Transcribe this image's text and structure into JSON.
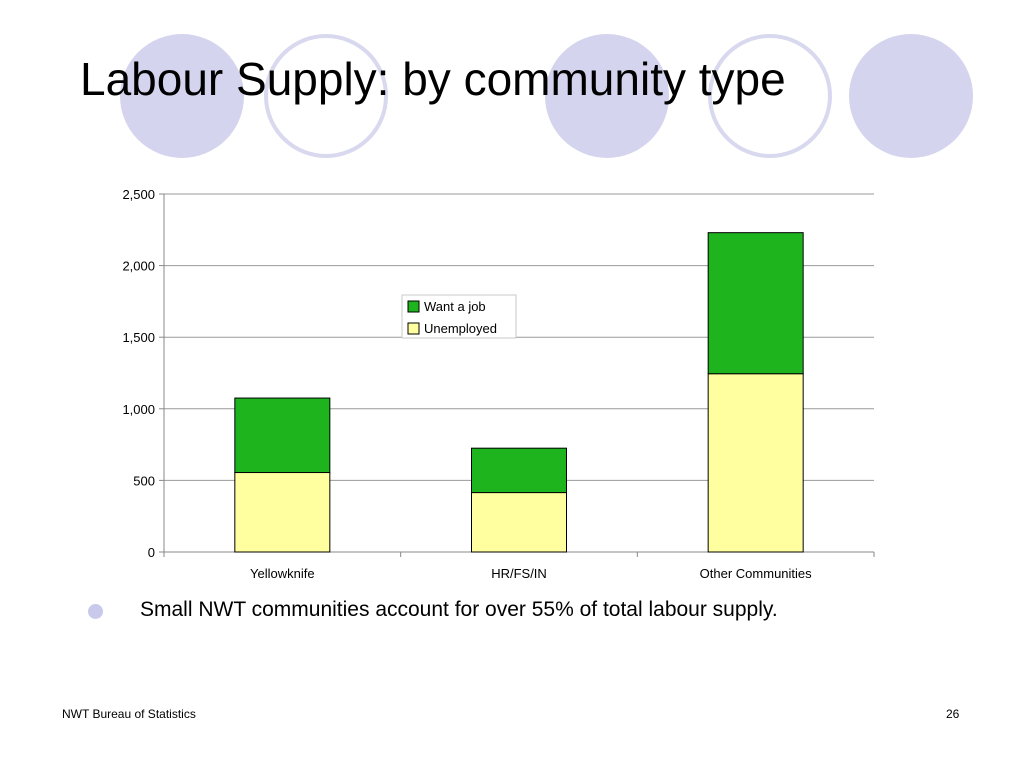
{
  "slide": {
    "title": "Labour Supply: by community type",
    "bullet": "Small NWT communities account for over 55% of total labour supply.",
    "footer_left": "NWT Bureau of Statistics",
    "page_number": "26"
  },
  "colors": {
    "want_a_job": "#1eb41e",
    "unemployed": "#ffff9f",
    "decor_circle": "#d4d4ee",
    "bullet": "#c9c9ec"
  },
  "chart_data": {
    "type": "bar",
    "stacked": true,
    "categories": [
      "Yellowknife",
      "HR/FS/IN",
      "Other Communities"
    ],
    "series": [
      {
        "name": "Unemployed",
        "values": [
          555,
          415,
          1245
        ]
      },
      {
        "name": "Want a job",
        "values": [
          520,
          310,
          985
        ]
      }
    ],
    "ylim": [
      0,
      2500
    ],
    "yticks": [
      0,
      500,
      1000,
      1500,
      2000,
      2500
    ],
    "ytick_labels": [
      "0",
      "500",
      "1,000",
      "1,500",
      "2,000",
      "2,500"
    ],
    "grid": true,
    "legend": {
      "placement": "center",
      "order": [
        "Want a job",
        "Unemployed"
      ]
    },
    "title": "",
    "xlabel": "",
    "ylabel": ""
  }
}
